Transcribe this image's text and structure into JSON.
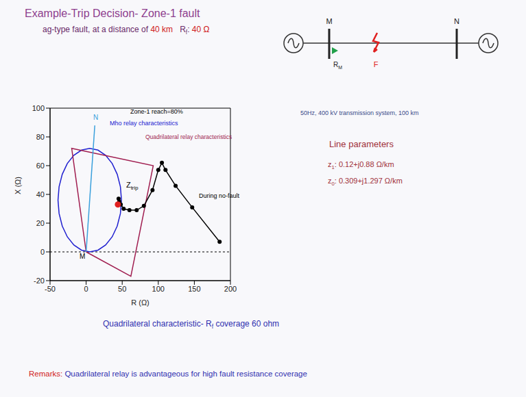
{
  "slide": {
    "title": "Example-Trip Decision- Zone-1 fault",
    "subtitle": [
      {
        "text": "ag-type fault, at a distance of ",
        "color": "#6a2a6a"
      },
      {
        "text": "40 km",
        "color": "#d02020"
      },
      {
        "text": "   R",
        "color": "#6a2a6a"
      },
      {
        "text": "f",
        "sub": true,
        "color": "#6a2a6a"
      },
      {
        "text": ": ",
        "color": "#6a2a6a"
      },
      {
        "text": "40 Ω",
        "color": "#d02020"
      }
    ],
    "diagram": {
      "buses": [
        "M",
        "N"
      ],
      "fault": "F",
      "relay": [
        {
          "text": "R"
        },
        {
          "text": "M",
          "sub": true
        }
      ]
    },
    "system": "50Hz, 400 kV transmission system, 100 km",
    "line_parameters_title": "Line parameters",
    "line_parameters": [
      [
        {
          "text": "z"
        },
        {
          "text": "1",
          "sub": true
        },
        {
          "text": ": 0.12+j0.88 Ω/km"
        }
      ],
      [
        {
          "text": "z"
        },
        {
          "text": "0",
          "sub": true
        },
        {
          "text": ": 0.309+j1.297 Ω/km"
        }
      ]
    ],
    "coverage": [
      {
        "text": "Quadrilateral characteristic- R"
      },
      {
        "text": "f",
        "sub": true
      },
      {
        "text": " coverage 60 ohm"
      }
    ],
    "remarks": [
      {
        "text": "Remarks: ",
        "color": "#d02020"
      },
      {
        "text": "Quadrilateral relay is advantageous for high fault resistance coverage",
        "color": "#3030b0"
      }
    ]
  },
  "chart_data": {
    "type": "scatter",
    "xlabel": "R (Ω)",
    "ylabel": "X (Ω)",
    "xlim": [
      -50,
      200
    ],
    "ylim": [
      -20,
      100
    ],
    "xticks": [
      -50,
      0,
      50,
      100,
      150,
      200
    ],
    "yticks": [
      -20,
      0,
      20,
      40,
      60,
      80,
      100
    ],
    "grid": false,
    "hlines": [
      0
    ],
    "annotations": [
      "Zone-1 reach=80%",
      "M",
      "During no-fault"
    ],
    "series": [
      {
        "name": "Mho relay characteristics",
        "color": "#2020d0",
        "line_style": "solid",
        "marker": "none",
        "x": [
          49,
          47.5,
          43.1,
          36.1,
          27,
          16.4,
          5,
          -6.4,
          -17,
          -26.1,
          -33.1,
          -37.5,
          -39,
          -37.5,
          -33.1,
          -26.1,
          -17,
          -6.4,
          5,
          16.4,
          27,
          36.1,
          43.1,
          47.5,
          49
        ],
        "y": [
          36,
          45.3,
          54,
          61.5,
          67.2,
          70.8,
          72,
          70.8,
          67.2,
          61.5,
          54,
          45.3,
          36,
          26.7,
          18,
          10.5,
          4.8,
          1.2,
          0,
          1.2,
          4.8,
          10.5,
          18,
          26.7,
          36
        ]
      },
      {
        "name": "Quadrilateral relay characteristics",
        "color": "#a01e50",
        "line_style": "solid",
        "marker": "none",
        "x": [
          0,
          -20,
          93,
          62,
          0
        ],
        "y": [
          0,
          72,
          60,
          -17,
          0
        ]
      },
      {
        "name": "N",
        "color": "#3aa0dc",
        "line_style": "solid",
        "marker": "none",
        "x": [
          0,
          12
        ],
        "y": [
          0,
          88
        ]
      },
      {
        "color": "#000000",
        "line_style": "solid",
        "marker": "circle",
        "x": [
          185,
          147,
          124,
          110,
          105,
          100,
          92,
          80,
          70,
          60,
          52,
          48,
          46,
          45
        ],
        "y": [
          7,
          31,
          46,
          57,
          62,
          57,
          43,
          32,
          29,
          29,
          30,
          33,
          35,
          37
        ]
      },
      {
        "label": [
          {
            "text": "Z"
          },
          {
            "text": "trip",
            "sub": true
          }
        ],
        "color": "#e02020",
        "line_style": "none",
        "marker": "circle",
        "x": [
          44
        ],
        "y": [
          33
        ]
      }
    ]
  }
}
